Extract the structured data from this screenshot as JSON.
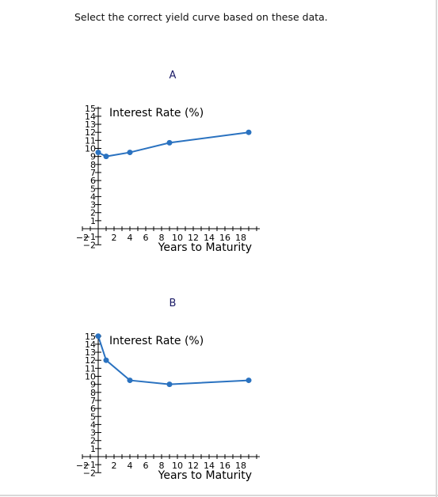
{
  "question": "Select the correct yield curve based on these data.",
  "colors": {
    "series": "#2a72c0",
    "axis": "#000000"
  },
  "chart_data": [
    {
      "type": "line",
      "label": "A",
      "xlabel": "Years to Maturity",
      "ylabel": "Interest Rate (%)",
      "xlim": [
        -2,
        20
      ],
      "ylim": [
        -2,
        15
      ],
      "x_tick_labels": [
        -2,
        2,
        4,
        6,
        8,
        10,
        12,
        14,
        16,
        18
      ],
      "y_tick_labels": [
        15,
        14,
        13,
        12,
        11,
        10,
        9,
        8,
        7,
        6,
        5,
        4,
        3,
        2,
        1,
        -1,
        -2
      ],
      "x": [
        0,
        1,
        4,
        9,
        19
      ],
      "y": [
        9.5,
        9,
        9.5,
        10.7,
        12
      ]
    },
    {
      "type": "line",
      "label": "B",
      "xlabel": "Years to Maturity",
      "ylabel": "Interest Rate (%)",
      "xlim": [
        -2,
        20
      ],
      "ylim": [
        -2,
        15
      ],
      "x_tick_labels": [
        -2,
        2,
        4,
        6,
        8,
        10,
        12,
        14,
        16,
        18
      ],
      "y_tick_labels": [
        15,
        14,
        13,
        12,
        11,
        10,
        9,
        8,
        7,
        6,
        5,
        4,
        3,
        2,
        1,
        -1,
        -2
      ],
      "x": [
        0,
        1,
        4,
        9,
        19
      ],
      "y": [
        15,
        12,
        9.5,
        9,
        9.5
      ]
    }
  ]
}
